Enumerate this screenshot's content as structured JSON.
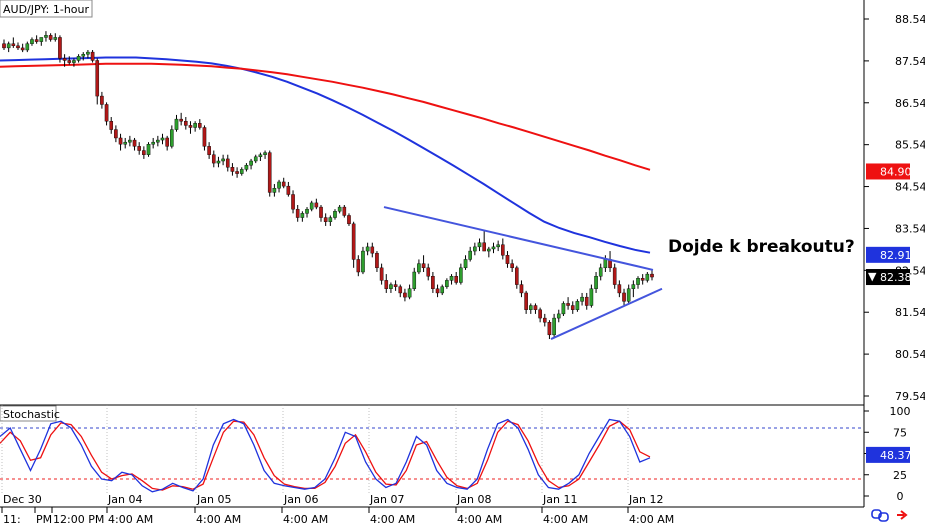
{
  "chart_data": {
    "type": "candlestick",
    "title": "AUD/JPY: 1-hour",
    "price_axis": {
      "ticks": [
        "88.54",
        "87.54",
        "86.54",
        "85.54",
        "84.54",
        "83.54",
        "82.54",
        "81.54",
        "80.54",
        "79.54"
      ],
      "tick_values": [
        88.54,
        87.54,
        86.54,
        85.54,
        84.54,
        83.54,
        82.54,
        81.54,
        80.54,
        79.54
      ],
      "ylim": [
        79.0,
        88.9
      ]
    },
    "price_tags": [
      {
        "label": "84.90",
        "value": 84.9,
        "color": "#ee1111",
        "text_color": "#ffffff"
      },
      {
        "label": "82.91",
        "value": 82.91,
        "color": "#1f33dd",
        "text_color": "#ffffff"
      },
      {
        "label": "82.38",
        "value": 82.38,
        "color": "#000000",
        "text_color": "#ffffff",
        "marker": "▼"
      }
    ],
    "x_axis": {
      "date_labels": [
        "Dec 30",
        "Jan 04",
        "Jan 05",
        "Jan 06",
        "Jan 07",
        "Jan 08",
        "Jan 11",
        "Jan 12"
      ],
      "time_labels": [
        "11:",
        "PM",
        "12:00 PM",
        "4:00 AM",
        "4:00 AM",
        "4:00 AM",
        "4:00 AM",
        "4:00 AM",
        "4:00 AM",
        "4:00 AM"
      ]
    },
    "candles_ohlc": [
      [
        87.95,
        88.05,
        87.8,
        87.85
      ],
      [
        87.85,
        88.0,
        87.75,
        87.95
      ],
      [
        87.95,
        88.1,
        87.85,
        87.9
      ],
      [
        87.9,
        87.98,
        87.8,
        87.85
      ],
      [
        87.85,
        87.95,
        87.75,
        87.8
      ],
      [
        87.8,
        88.0,
        87.75,
        87.95
      ],
      [
        87.95,
        88.1,
        87.9,
        88.05
      ],
      [
        88.05,
        88.15,
        87.95,
        88.0
      ],
      [
        88.0,
        88.1,
        87.9,
        88.1
      ],
      [
        88.1,
        88.25,
        88.0,
        88.15
      ],
      [
        88.15,
        88.2,
        88.0,
        88.05
      ],
      [
        88.05,
        88.2,
        88.0,
        88.1
      ],
      [
        88.1,
        88.15,
        87.5,
        87.6
      ],
      [
        87.6,
        87.7,
        87.4,
        87.55
      ],
      [
        87.55,
        87.65,
        87.45,
        87.5
      ],
      [
        87.5,
        87.6,
        87.4,
        87.55
      ],
      [
        87.55,
        87.7,
        87.5,
        87.65
      ],
      [
        87.65,
        87.75,
        87.55,
        87.7
      ],
      [
        87.7,
        87.8,
        87.6,
        87.75
      ],
      [
        87.75,
        87.8,
        87.5,
        87.55
      ],
      [
        87.55,
        87.6,
        86.5,
        86.7
      ],
      [
        86.7,
        86.8,
        86.4,
        86.5
      ],
      [
        86.5,
        86.55,
        86.0,
        86.1
      ],
      [
        86.1,
        86.2,
        85.8,
        85.9
      ],
      [
        85.9,
        86.0,
        85.6,
        85.7
      ],
      [
        85.7,
        85.8,
        85.4,
        85.55
      ],
      [
        85.55,
        85.7,
        85.45,
        85.6
      ],
      [
        85.6,
        85.75,
        85.5,
        85.65
      ],
      [
        85.65,
        85.7,
        85.4,
        85.5
      ],
      [
        85.5,
        85.6,
        85.3,
        85.4
      ],
      [
        85.4,
        85.5,
        85.2,
        85.3
      ],
      [
        85.3,
        85.6,
        85.25,
        85.55
      ],
      [
        85.55,
        85.7,
        85.45,
        85.6
      ],
      [
        85.6,
        85.75,
        85.5,
        85.65
      ],
      [
        85.65,
        85.8,
        85.55,
        85.7
      ],
      [
        85.7,
        85.75,
        85.4,
        85.5
      ],
      [
        85.5,
        86.0,
        85.45,
        85.9
      ],
      [
        85.9,
        86.25,
        85.85,
        86.15
      ],
      [
        86.15,
        86.3,
        86.0,
        86.1
      ],
      [
        86.1,
        86.2,
        85.9,
        86.0
      ],
      [
        86.0,
        86.1,
        85.8,
        85.95
      ],
      [
        85.95,
        86.1,
        85.85,
        86.05
      ],
      [
        86.05,
        86.15,
        85.9,
        85.95
      ],
      [
        85.95,
        86.0,
        85.4,
        85.5
      ],
      [
        85.5,
        85.6,
        85.2,
        85.3
      ],
      [
        85.3,
        85.4,
        85.0,
        85.1
      ],
      [
        85.1,
        85.25,
        85.0,
        85.15
      ],
      [
        85.15,
        85.3,
        85.05,
        85.2
      ],
      [
        85.2,
        85.3,
        84.9,
        85.0
      ],
      [
        85.0,
        85.1,
        84.8,
        84.9
      ],
      [
        84.9,
        85.0,
        84.75,
        84.85
      ],
      [
        84.85,
        85.0,
        84.8,
        84.95
      ],
      [
        84.95,
        85.1,
        84.9,
        85.05
      ],
      [
        85.05,
        85.2,
        84.95,
        85.15
      ],
      [
        85.15,
        85.3,
        85.1,
        85.25
      ],
      [
        85.25,
        85.35,
        85.15,
        85.3
      ],
      [
        85.3,
        85.4,
        85.2,
        85.35
      ],
      [
        85.35,
        85.4,
        84.3,
        84.4
      ],
      [
        84.4,
        84.6,
        84.3,
        84.5
      ],
      [
        84.5,
        84.7,
        84.4,
        84.65
      ],
      [
        84.65,
        84.75,
        84.5,
        84.55
      ],
      [
        84.55,
        84.65,
        84.3,
        84.35
      ],
      [
        84.35,
        84.45,
        83.9,
        84.0
      ],
      [
        84.0,
        84.1,
        83.7,
        83.8
      ],
      [
        83.8,
        83.95,
        83.7,
        83.9
      ],
      [
        83.9,
        84.05,
        83.8,
        84.0
      ],
      [
        84.0,
        84.2,
        83.95,
        84.15
      ],
      [
        84.15,
        84.25,
        84.0,
        84.05
      ],
      [
        84.05,
        84.1,
        83.7,
        83.8
      ],
      [
        83.8,
        83.9,
        83.6,
        83.7
      ],
      [
        83.7,
        83.85,
        83.6,
        83.8
      ],
      [
        83.8,
        84.0,
        83.75,
        83.95
      ],
      [
        83.95,
        84.1,
        83.9,
        84.05
      ],
      [
        84.05,
        84.1,
        83.8,
        83.85
      ],
      [
        83.85,
        83.9,
        83.6,
        83.65
      ],
      [
        83.65,
        83.7,
        82.6,
        82.8
      ],
      [
        82.8,
        82.9,
        82.4,
        82.5
      ],
      [
        82.5,
        83.1,
        82.45,
        83.0
      ],
      [
        83.0,
        83.2,
        82.9,
        83.1
      ],
      [
        83.1,
        83.2,
        82.85,
        82.95
      ],
      [
        82.95,
        83.0,
        82.5,
        82.6
      ],
      [
        82.6,
        82.7,
        82.2,
        82.3
      ],
      [
        82.3,
        82.45,
        82.0,
        82.1
      ],
      [
        82.1,
        82.25,
        82.0,
        82.2
      ],
      [
        82.2,
        82.3,
        82.05,
        82.15
      ],
      [
        82.15,
        82.2,
        81.9,
        82.0
      ],
      [
        82.0,
        82.1,
        81.8,
        81.9
      ],
      [
        81.9,
        82.2,
        81.85,
        82.1
      ],
      [
        82.1,
        82.6,
        82.05,
        82.5
      ],
      [
        82.5,
        82.8,
        82.45,
        82.7
      ],
      [
        82.7,
        82.9,
        82.5,
        82.6
      ],
      [
        82.6,
        82.7,
        82.3,
        82.4
      ],
      [
        82.4,
        82.5,
        82.0,
        82.1
      ],
      [
        82.1,
        82.2,
        81.9,
        82.0
      ],
      [
        82.0,
        82.2,
        81.95,
        82.15
      ],
      [
        82.15,
        82.35,
        82.1,
        82.3
      ],
      [
        82.3,
        82.45,
        82.2,
        82.4
      ],
      [
        82.4,
        82.5,
        82.2,
        82.25
      ],
      [
        82.25,
        82.7,
        82.2,
        82.6
      ],
      [
        82.6,
        82.9,
        82.55,
        82.8
      ],
      [
        82.8,
        83.1,
        82.75,
        83.0
      ],
      [
        83.0,
        83.2,
        82.9,
        83.1
      ],
      [
        83.1,
        83.3,
        83.0,
        83.2
      ],
      [
        83.2,
        83.5,
        83.1,
        83.0
      ],
      [
        83.0,
        83.1,
        82.85,
        83.05
      ],
      [
        83.05,
        83.2,
        82.95,
        83.1
      ],
      [
        83.1,
        83.25,
        83.0,
        83.15
      ],
      [
        83.15,
        83.3,
        82.8,
        82.9
      ],
      [
        82.9,
        83.0,
        82.6,
        82.7
      ],
      [
        82.7,
        82.8,
        82.5,
        82.6
      ],
      [
        82.6,
        82.65,
        82.1,
        82.2
      ],
      [
        82.2,
        82.3,
        81.9,
        82.0
      ],
      [
        82.0,
        82.05,
        81.5,
        81.6
      ],
      [
        81.6,
        81.75,
        81.5,
        81.7
      ],
      [
        81.7,
        81.75,
        81.5,
        81.6
      ],
      [
        81.6,
        81.65,
        81.3,
        81.4
      ],
      [
        81.4,
        81.5,
        81.2,
        81.3
      ],
      [
        81.3,
        81.35,
        80.9,
        81.0
      ],
      [
        81.0,
        81.5,
        80.95,
        81.4
      ],
      [
        81.4,
        81.6,
        81.3,
        81.5
      ],
      [
        81.5,
        81.8,
        81.45,
        81.75
      ],
      [
        81.75,
        81.9,
        81.6,
        81.7
      ],
      [
        81.7,
        81.8,
        81.5,
        81.6
      ],
      [
        81.6,
        81.85,
        81.55,
        81.8
      ],
      [
        81.8,
        82.0,
        81.7,
        81.9
      ],
      [
        81.9,
        82.0,
        81.6,
        81.7
      ],
      [
        81.7,
        82.2,
        81.65,
        82.1
      ],
      [
        82.1,
        82.5,
        82.0,
        82.4
      ],
      [
        82.4,
        82.7,
        82.3,
        82.6
      ],
      [
        82.6,
        82.9,
        82.5,
        82.8
      ],
      [
        82.8,
        83.0,
        82.5,
        82.6
      ],
      [
        82.6,
        82.7,
        82.1,
        82.2
      ],
      [
        82.2,
        82.3,
        81.9,
        82.0
      ],
      [
        82.0,
        82.1,
        81.7,
        81.8
      ],
      [
        81.8,
        82.2,
        81.75,
        82.1
      ],
      [
        82.1,
        82.3,
        81.9,
        82.2
      ],
      [
        82.2,
        82.4,
        82.1,
        82.35
      ],
      [
        82.35,
        82.45,
        82.2,
        82.3
      ],
      [
        82.3,
        82.5,
        82.25,
        82.45
      ],
      [
        82.45,
        82.55,
        82.3,
        82.38
      ]
    ],
    "series": [
      {
        "color": "#1f33dd",
        "values": [
          87.55,
          87.56,
          87.57,
          87.58,
          87.59,
          87.6,
          87.61,
          87.62,
          87.62,
          87.62,
          87.6,
          87.58,
          87.55,
          87.52,
          87.48,
          87.42,
          87.35,
          87.26,
          87.16,
          87.04,
          86.9,
          86.76,
          86.6,
          86.43,
          86.25,
          86.06,
          85.87,
          85.67,
          85.46,
          85.25,
          85.04,
          84.82,
          84.6,
          84.37,
          84.14,
          83.91,
          83.7,
          83.55,
          83.43,
          83.33,
          83.22,
          83.12,
          83.03,
          82.96
        ]
      },
      {
        "color": "#ee1111",
        "values": [
          87.4,
          87.41,
          87.42,
          87.43,
          87.44,
          87.45,
          87.46,
          87.47,
          87.47,
          87.47,
          87.47,
          87.46,
          87.45,
          87.43,
          87.41,
          87.38,
          87.35,
          87.31,
          87.27,
          87.22,
          87.16,
          87.1,
          87.04,
          86.97,
          86.9,
          86.82,
          86.74,
          86.65,
          86.56,
          86.46,
          86.36,
          86.26,
          86.16,
          86.05,
          85.95,
          85.84,
          85.73,
          85.62,
          85.51,
          85.4,
          85.28,
          85.17,
          85.05,
          84.94
        ]
      }
    ],
    "trendlines": [
      {
        "color": "#4455dd",
        "from": [
          0.0,
          84.05
        ],
        "to": [
          1.0,
          82.55
        ]
      },
      {
        "color": "#4455dd",
        "from": [
          0.0,
          80.9
        ],
        "to": [
          1.0,
          82.1
        ]
      }
    ],
    "annotation": "Dojde k breakoutu?",
    "stochastic": {
      "title": "Stochastic",
      "ticks": [
        "100",
        "75",
        "50",
        "25",
        "0"
      ],
      "tick_values": [
        100,
        75,
        50,
        25,
        0
      ],
      "levels": [
        {
          "value": 80,
          "color": "#3344cc"
        },
        {
          "value": 20,
          "color": "#ee2222"
        }
      ],
      "value_tag": {
        "label": "48.37",
        "value": 48.37,
        "color": "#1f33dd"
      },
      "k_series": {
        "color": "#1f33dd",
        "values": [
          70,
          80,
          55,
          30,
          55,
          85,
          88,
          80,
          60,
          35,
          20,
          18,
          28,
          25,
          12,
          5,
          8,
          15,
          10,
          6,
          20,
          60,
          85,
          90,
          85,
          60,
          30,
          15,
          12,
          10,
          8,
          10,
          20,
          45,
          75,
          70,
          40,
          20,
          10,
          15,
          40,
          70,
          60,
          30,
          15,
          10,
          8,
          20,
          55,
          85,
          90,
          80,
          55,
          25,
          10,
          8,
          15,
          25,
          50,
          70,
          90,
          88,
          70,
          40,
          45
        ]
      },
      "d_series": {
        "color": "#ee1111",
        "values": [
          62,
          75,
          65,
          42,
          45,
          72,
          86,
          84,
          70,
          48,
          28,
          20,
          24,
          26,
          18,
          9,
          7,
          12,
          11,
          8,
          14,
          45,
          75,
          88,
          87,
          72,
          45,
          24,
          14,
          11,
          9,
          9,
          16,
          35,
          62,
          72,
          52,
          28,
          14,
          13,
          30,
          60,
          64,
          42,
          22,
          12,
          9,
          15,
          42,
          75,
          88,
          84,
          65,
          38,
          18,
          10,
          12,
          20,
          40,
          60,
          82,
          88,
          78,
          52,
          46
        ]
      }
    },
    "icons": [
      "link-icon",
      "arrow-icon"
    ]
  }
}
